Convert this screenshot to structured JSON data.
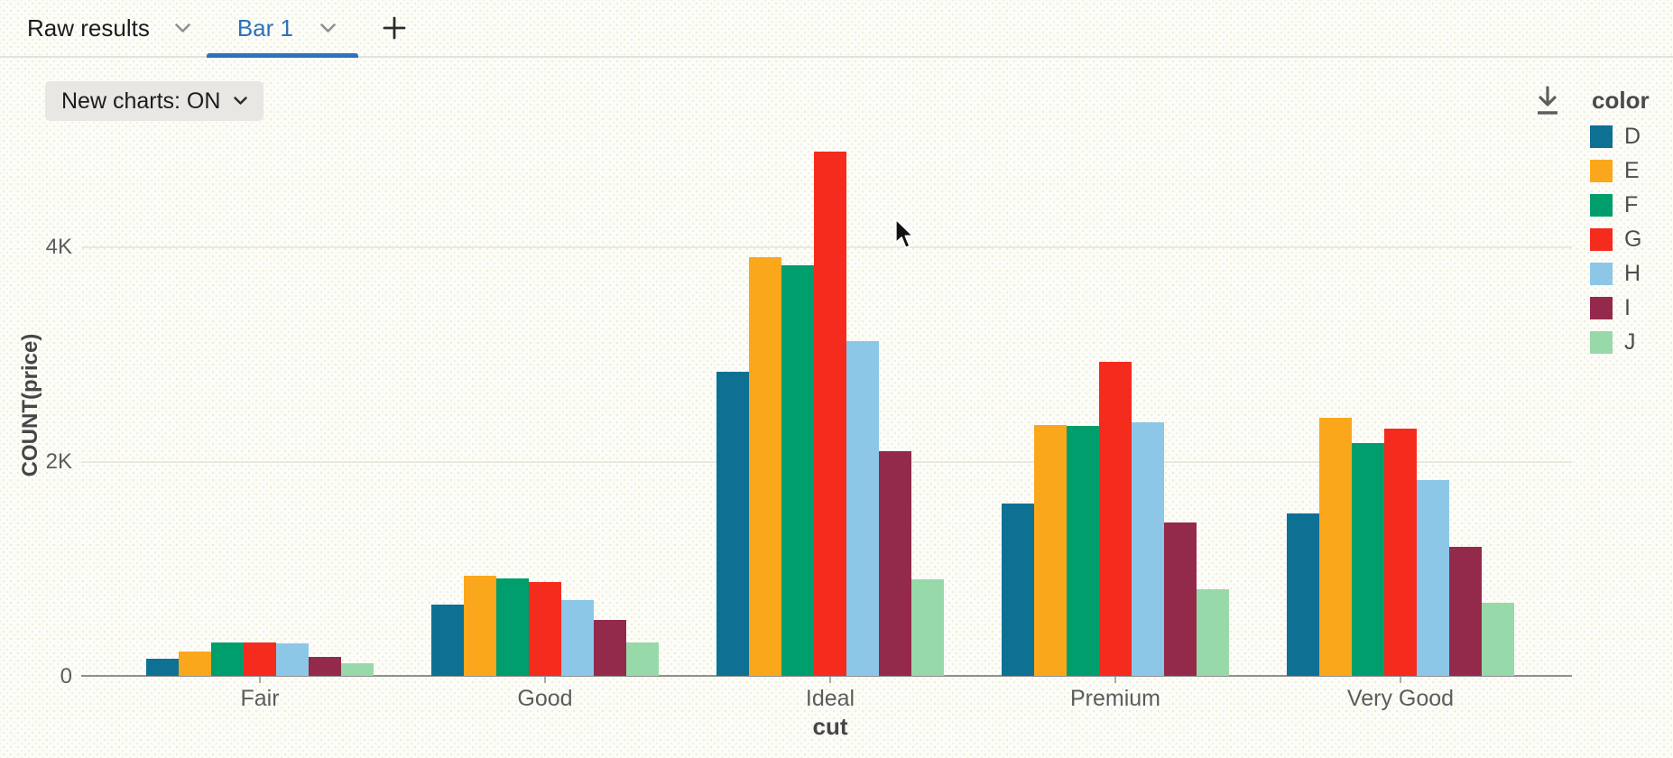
{
  "tabs": {
    "raw_results_label": "Raw results",
    "bar_tab_label": "Bar 1"
  },
  "toolbar": {
    "new_charts_label": "New charts: ON"
  },
  "legend": {
    "title": "color"
  },
  "chart_data": {
    "type": "bar",
    "title": "",
    "xlabel": "cut",
    "ylabel": "COUNT(price)",
    "categories": [
      "Fair",
      "Good",
      "Ideal",
      "Premium",
      "Very Good"
    ],
    "series": [
      {
        "name": "D",
        "color": "#0e7193",
        "values": [
          163,
          662,
          2834,
          1603,
          1513
        ]
      },
      {
        "name": "E",
        "color": "#fba71c",
        "values": [
          224,
          933,
          3903,
          2337,
          2400
        ]
      },
      {
        "name": "F",
        "color": "#009e6d",
        "values": [
          312,
          909,
          3826,
          2331,
          2164
        ]
      },
      {
        "name": "G",
        "color": "#f52b1e",
        "values": [
          314,
          871,
          4884,
          2924,
          2299
        ]
      },
      {
        "name": "H",
        "color": "#8cc7e8",
        "values": [
          303,
          702,
          3115,
          2360,
          1824
        ]
      },
      {
        "name": "I",
        "color": "#932a4c",
        "values": [
          175,
          522,
          2093,
          1428,
          1204
        ]
      },
      {
        "name": "J",
        "color": "#98d9a9",
        "values": [
          119,
          307,
          896,
          808,
          678
        ]
      }
    ],
    "y_ticks": [
      "0",
      "2K",
      "4K"
    ],
    "y_tick_values": [
      0,
      2000,
      4000
    ],
    "ylim": [
      0,
      5100
    ],
    "grid": true,
    "legend_position": "right"
  }
}
